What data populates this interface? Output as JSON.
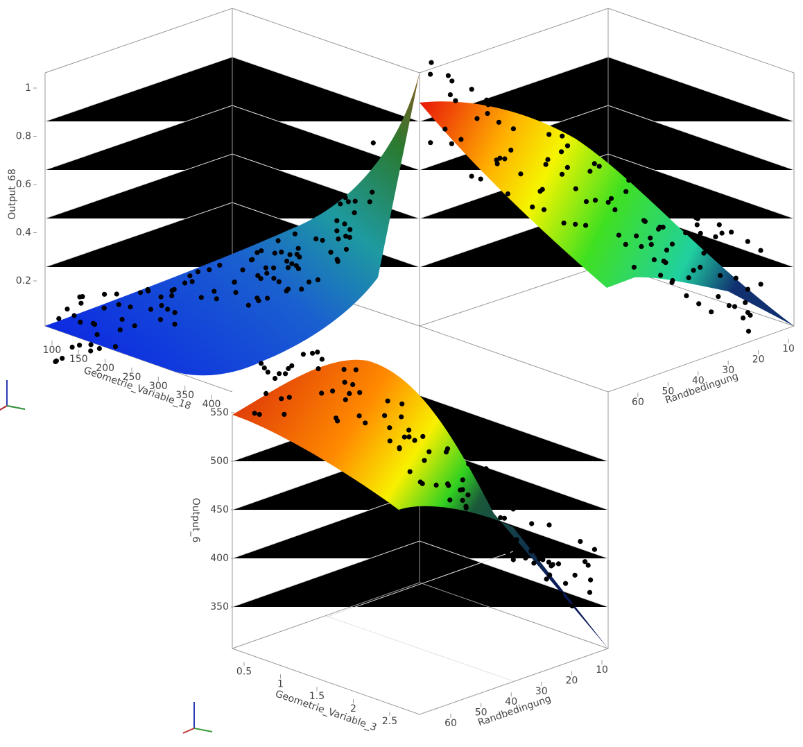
{
  "chart_data": [
    {
      "type": "surface3d",
      "z_label": "Output_68",
      "x_label": "Geometrie_Variable_18",
      "y_label": "Randbedingung",
      "zlim": [
        0,
        1.05
      ],
      "zticks": [
        0.2,
        0.4,
        0.6,
        0.8,
        1
      ],
      "xlim": [
        90,
        410
      ],
      "xticks": [
        100,
        150,
        200,
        250,
        300,
        350,
        400
      ],
      "ylim": [
        8,
        64
      ],
      "yticks": [
        10,
        20,
        30,
        40,
        50,
        60
      ]
    },
    {
      "type": "surface3d",
      "z_label": "Output_6",
      "x_label": "Geometrie_Variable_3",
      "y_label": "Randbedingung",
      "zlim": [
        320,
        560
      ],
      "zticks": [
        350,
        400,
        450,
        500,
        550
      ],
      "xlim": [
        0.3,
        2.7
      ],
      "xticks": [
        0.5,
        1,
        1.5,
        2,
        2.5
      ],
      "ylim": [
        8,
        64
      ],
      "yticks": [
        10,
        20,
        30,
        40,
        50,
        60
      ]
    }
  ]
}
